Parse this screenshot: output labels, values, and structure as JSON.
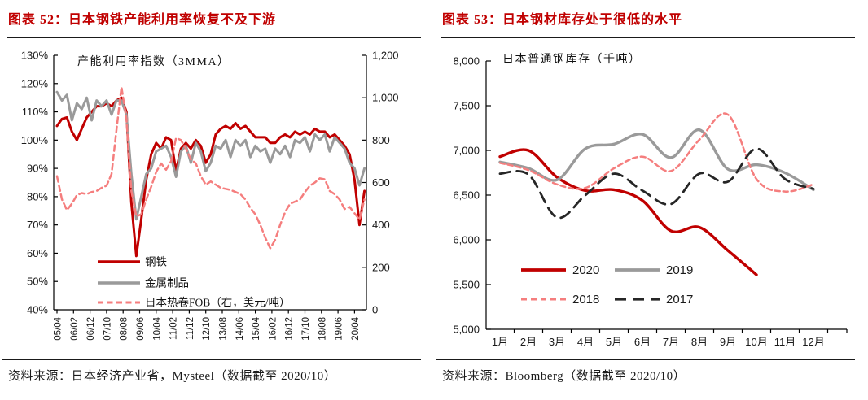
{
  "panels": [
    {
      "title": "图表 52：日本钢铁产能利用率恢复不及下游",
      "source": "资料来源：日本经济产业省，Mysteel（数据截至 2020/10）"
    },
    {
      "title": "图表 53：日本钢材库存处于很低的水平",
      "source": "资料来源：Bloomberg（数据截至 2020/10）"
    }
  ],
  "colors": {
    "title_red": "#c00000",
    "steel_red": "#c00000",
    "gray": "#9a9a9a",
    "salmon": "#f57e7e",
    "black": "#262626",
    "axis": "#000000"
  },
  "chart_data": [
    {
      "type": "line",
      "inner_title": "产能利用率指数（3MMA）",
      "x_start": "2005/04",
      "x_end": "2020/10",
      "x_ticks": [
        {
          "m": 0,
          "label": "05/04"
        },
        {
          "m": 10,
          "label": "06/02"
        },
        {
          "m": 20,
          "label": "06/12"
        },
        {
          "m": 30,
          "label": "07/10"
        },
        {
          "m": 40,
          "label": "08/08"
        },
        {
          "m": 50,
          "label": "09/06"
        },
        {
          "m": 60,
          "label": "10/04"
        },
        {
          "m": 70,
          "label": "11/02"
        },
        {
          "m": 80,
          "label": "11/12"
        },
        {
          "m": 90,
          "label": "12/10"
        },
        {
          "m": 100,
          "label": "13/08"
        },
        {
          "m": 110,
          "label": "14/06"
        },
        {
          "m": 120,
          "label": "15/04"
        },
        {
          "m": 130,
          "label": "16/02"
        },
        {
          "m": 140,
          "label": "16/12"
        },
        {
          "m": 150,
          "label": "17/10"
        },
        {
          "m": 160,
          "label": "18/08"
        },
        {
          "m": 170,
          "label": "19/06"
        },
        {
          "m": 180,
          "label": "20/04"
        }
      ],
      "y_left": {
        "min": 40,
        "max": 130,
        "ticks": [
          {
            "v": 130,
            "label": "130%"
          },
          {
            "v": 120,
            "label": "120%"
          },
          {
            "v": 110,
            "label": "110%"
          },
          {
            "v": 100,
            "label": "100%"
          },
          {
            "v": 90,
            "label": "90%"
          },
          {
            "v": 80,
            "label": "80%"
          },
          {
            "v": 70,
            "label": "70%"
          },
          {
            "v": 60,
            "label": "60%"
          },
          {
            "v": 50,
            "label": "50%"
          },
          {
            "v": 40,
            "label": "40%"
          }
        ]
      },
      "y_right": {
        "min": 0,
        "max": 1200,
        "ticks": [
          {
            "v": 1200,
            "label": "1,200"
          },
          {
            "v": 1000,
            "label": "1,000"
          },
          {
            "v": 800,
            "label": "800"
          },
          {
            "v": 600,
            "label": "600"
          },
          {
            "v": 400,
            "label": "400"
          },
          {
            "v": 200,
            "label": "200"
          },
          {
            "v": 0,
            "label": "0"
          }
        ]
      },
      "series": [
        {
          "key": "steel",
          "name": "钢铁",
          "axis": "left",
          "color": "#c00000",
          "line": "solid",
          "month_step": 3,
          "values": [
            105,
            107.5,
            108,
            103,
            100,
            104,
            108,
            110,
            112,
            112,
            113,
            112,
            114,
            115,
            110,
            78,
            59,
            72,
            86,
            95,
            99,
            97,
            101,
            100,
            89,
            97,
            99,
            97,
            100,
            98,
            92,
            95,
            102,
            104,
            105,
            104,
            106,
            104,
            105,
            103,
            101,
            101,
            101,
            99,
            99,
            101,
            102,
            101,
            103,
            102,
            103,
            102,
            104,
            103,
            103,
            101,
            102,
            100,
            98,
            95,
            86,
            70,
            82
          ]
        },
        {
          "key": "metal-products",
          "name": "金属制品",
          "axis": "left",
          "color": "#9a9a9a",
          "line": "solid",
          "month_step": 3,
          "values": [
            117,
            114,
            116,
            107,
            113,
            111,
            115,
            107,
            114,
            112,
            114,
            109,
            114,
            114,
            109,
            88,
            72,
            80,
            88,
            90,
            96,
            97,
            98,
            94,
            87,
            96,
            98,
            92,
            99,
            96,
            89,
            92,
            98,
            97,
            100,
            94,
            100,
            98,
            100,
            94,
            98,
            96,
            97,
            92,
            97,
            95,
            98,
            94,
            100,
            99,
            101,
            96,
            102,
            100,
            102,
            96,
            101,
            99,
            97,
            92,
            90,
            84,
            90
          ]
        },
        {
          "key": "japan-hrc-fob",
          "name": "日本热卷FOB（右，美元/吨）",
          "axis": "right",
          "color": "#f57e7e",
          "line": "dashed",
          "month_step": 3,
          "values": [
            630,
            520,
            470,
            500,
            540,
            550,
            545,
            555,
            560,
            575,
            585,
            640,
            850,
            1050,
            900,
            560,
            440,
            450,
            520,
            580,
            650,
            690,
            660,
            700,
            810,
            800,
            760,
            710,
            690,
            630,
            590,
            605,
            590,
            575,
            570,
            565,
            555,
            545,
            520,
            480,
            450,
            400,
            340,
            290,
            330,
            400,
            460,
            500,
            510,
            520,
            555,
            585,
            600,
            620,
            615,
            560,
            545,
            520,
            475,
            485,
            455,
            425,
            520
          ]
        }
      ]
    },
    {
      "type": "line",
      "inner_title": "日本普通钢库存（千吨）",
      "categories": [
        "1月",
        "2月",
        "3月",
        "4月",
        "5月",
        "6月",
        "7月",
        "8月",
        "9月",
        "10月",
        "11月",
        "12月"
      ],
      "y": {
        "min": 5000,
        "max": 8000,
        "ticks": [
          {
            "v": 8000,
            "label": "8,000"
          },
          {
            "v": 7500,
            "label": "7,500"
          },
          {
            "v": 7000,
            "label": "7,000"
          },
          {
            "v": 6500,
            "label": "6,500"
          },
          {
            "v": 6000,
            "label": "6,000"
          },
          {
            "v": 5500,
            "label": "5,500"
          },
          {
            "v": 5000,
            "label": "5,000"
          }
        ]
      },
      "series": [
        {
          "key": "y2020",
          "name": "2020",
          "color": "#c00000",
          "line": "solid",
          "values": [
            6930,
            7000,
            6700,
            6550,
            6560,
            6440,
            6100,
            6140,
            5880,
            5610
          ]
        },
        {
          "key": "y2019",
          "name": "2019",
          "color": "#9a9a9a",
          "line": "solid",
          "values": [
            6870,
            6800,
            6670,
            7020,
            7070,
            7180,
            6920,
            7230,
            6790,
            6840,
            6750,
            6560
          ]
        },
        {
          "key": "y2018",
          "name": "2018",
          "color": "#f57e7e",
          "line": "dashed",
          "values": [
            6860,
            6780,
            6620,
            6580,
            6800,
            6930,
            6770,
            7120,
            7400,
            6680,
            6540,
            6620
          ]
        },
        {
          "key": "y2017",
          "name": "2017",
          "color": "#262626",
          "line": "long-dash",
          "values": [
            6740,
            6730,
            6250,
            6500,
            6740,
            6550,
            6400,
            6740,
            6650,
            7020,
            6680,
            6570
          ]
        }
      ]
    }
  ]
}
